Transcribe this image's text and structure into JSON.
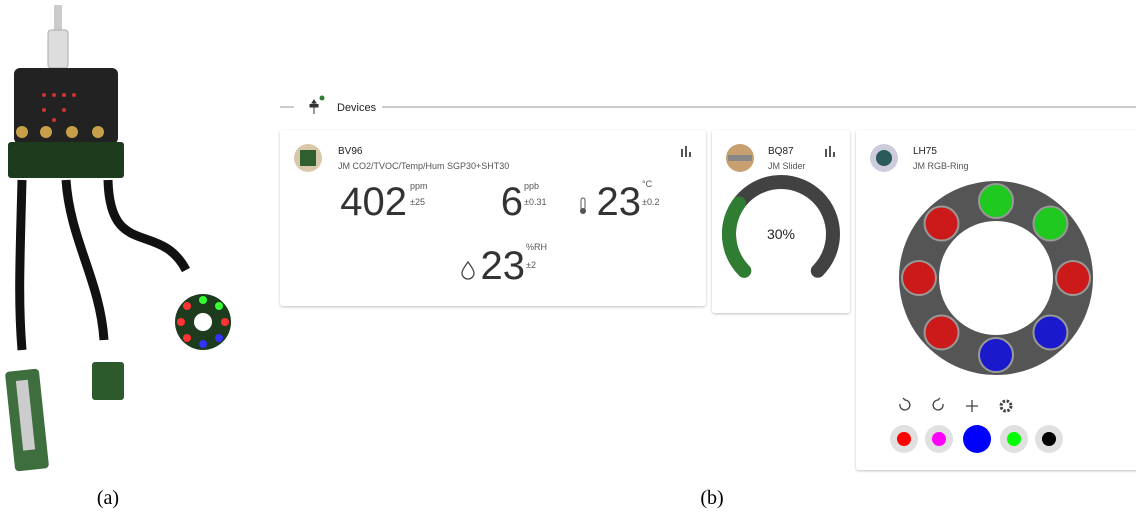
{
  "captions": {
    "a": "(a)",
    "b": "(b)"
  },
  "section": {
    "title": "Devices"
  },
  "sensor_card": {
    "name": "BV96",
    "description": "JM CO2/TVOC/Temp/Hum SGP30+SHT30",
    "readings": [
      {
        "value": "402",
        "unit": "ppm",
        "error": "±25"
      },
      {
        "value": "6",
        "unit": "ppb",
        "error": "±0.31"
      },
      {
        "value": "23",
        "unit": "°C",
        "error": "±0.2"
      },
      {
        "value": "23",
        "unit": "%RH",
        "error": "±2"
      }
    ]
  },
  "slider_card": {
    "name": "BQ87",
    "description": "JM Slider",
    "reading": {
      "value": 30,
      "label": "30%"
    },
    "fill_color": "#2e7d32",
    "track_color": "#424242"
  },
  "ring_card": {
    "name": "LH75",
    "description": "JM RGB-Ring",
    "leds": [
      "#1fc91f",
      "#1fc91f",
      "#cc1a1a",
      "#1a1acc",
      "#1a1acc",
      "#cc1a1a",
      "#cc1a1a",
      "#cc1a1a"
    ],
    "palette": [
      "#ff0000",
      "#ff00ff",
      "#0000ff",
      "#00ff00",
      "#000000"
    ]
  }
}
